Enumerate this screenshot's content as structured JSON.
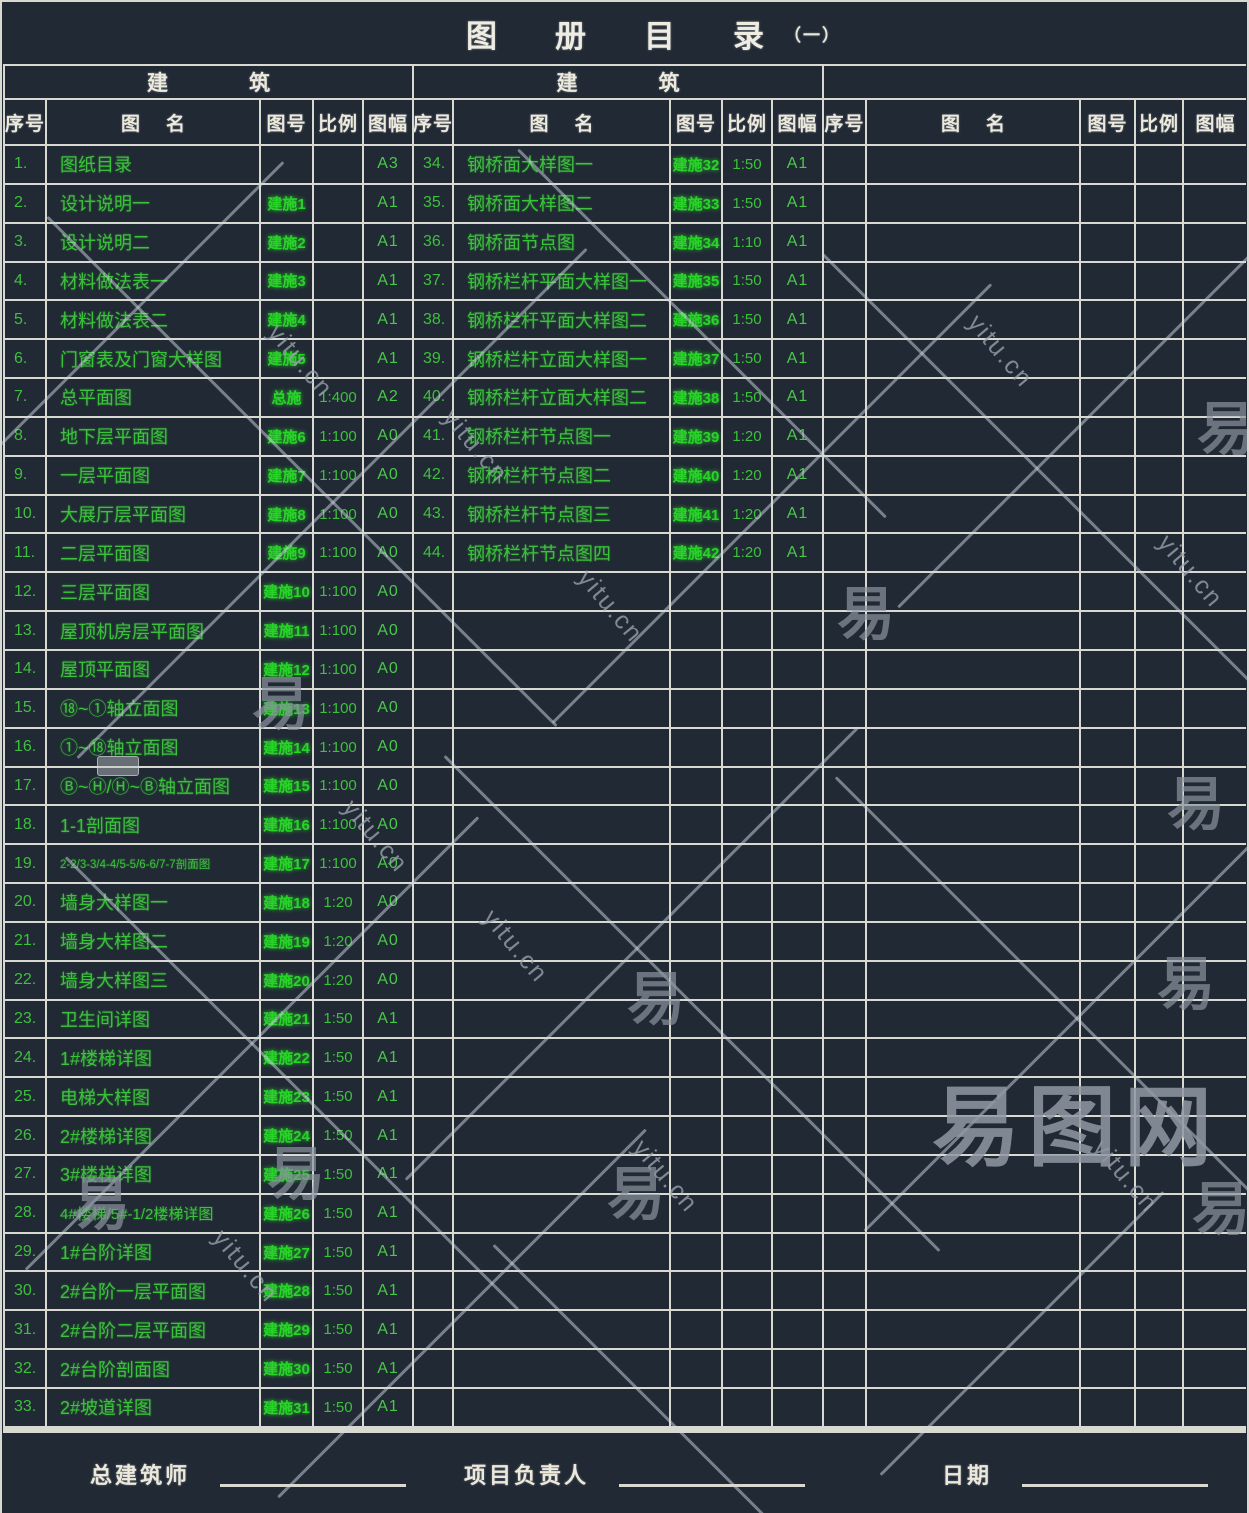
{
  "title": {
    "text": "图册目录",
    "suffix": "（一）"
  },
  "group_headers": [
    "建　筑",
    "建　筑",
    ""
  ],
  "column_headers": [
    "序号",
    "图名",
    "图号",
    "比例",
    "图幅"
  ],
  "rows_left": [
    {
      "no": "1.",
      "name": "图纸目录",
      "code": "",
      "scale": "",
      "size": "A3"
    },
    {
      "no": "2.",
      "name": "设计说明一",
      "code": "建施1",
      "scale": "",
      "size": "A1"
    },
    {
      "no": "3.",
      "name": "设计说明二",
      "code": "建施2",
      "scale": "",
      "size": "A1"
    },
    {
      "no": "4.",
      "name": "材料做法表一",
      "code": "建施3",
      "scale": "",
      "size": "A1"
    },
    {
      "no": "5.",
      "name": "材料做法表二",
      "code": "建施4",
      "scale": "",
      "size": "A1"
    },
    {
      "no": "6.",
      "name": "门窗表及门窗大样图",
      "code": "建施5",
      "scale": "",
      "size": "A1"
    },
    {
      "no": "7.",
      "name": "总平面图",
      "code": "总施",
      "scale": "1:400",
      "size": "A2"
    },
    {
      "no": "8.",
      "name": "地下层平面图",
      "code": "建施6",
      "scale": "1:100",
      "size": "A0"
    },
    {
      "no": "9.",
      "name": "一层平面图",
      "code": "建施7",
      "scale": "1:100",
      "size": "A0"
    },
    {
      "no": "10.",
      "name": "大展厅层平面图",
      "code": "建施8",
      "scale": "1:100",
      "size": "A0"
    },
    {
      "no": "11.",
      "name": "二层平面图",
      "code": "建施9",
      "scale": "1:100",
      "size": "A0"
    },
    {
      "no": "12.",
      "name": "三层平面图",
      "code": "建施10",
      "scale": "1:100",
      "size": "A0"
    },
    {
      "no": "13.",
      "name": "屋顶机房层平面图",
      "code": "建施11",
      "scale": "1:100",
      "size": "A0"
    },
    {
      "no": "14.",
      "name": "屋顶平面图",
      "code": "建施12",
      "scale": "1:100",
      "size": "A0"
    },
    {
      "no": "15.",
      "name": "⑱~①轴立面图",
      "code": "建施13",
      "scale": "1:100",
      "size": "A0"
    },
    {
      "no": "16.",
      "name": "①~⑱轴立面图",
      "code": "建施14",
      "scale": "1:100",
      "size": "A0"
    },
    {
      "no": "17.",
      "name": "Ⓑ~Ⓗ/Ⓗ~Ⓑ轴立面图",
      "code": "建施15",
      "scale": "1:100",
      "size": "A0"
    },
    {
      "no": "18.",
      "name": "1-1剖面图",
      "code": "建施16",
      "scale": "1:100",
      "size": "A0"
    },
    {
      "no": "19.",
      "name": "2-2/3-3/4-4/5-5/6-6/7-7剖面图",
      "code": "建施17",
      "scale": "1:100",
      "size": "A0"
    },
    {
      "no": "20.",
      "name": "墙身大样图一",
      "code": "建施18",
      "scale": "1:20",
      "size": "A0"
    },
    {
      "no": "21.",
      "name": "墙身大样图二",
      "code": "建施19",
      "scale": "1:20",
      "size": "A0"
    },
    {
      "no": "22.",
      "name": "墙身大样图三",
      "code": "建施20",
      "scale": "1:20",
      "size": "A0"
    },
    {
      "no": "23.",
      "name": "卫生间详图",
      "code": "建施21",
      "scale": "1:50",
      "size": "A1"
    },
    {
      "no": "24.",
      "name": "1#楼梯详图",
      "code": "建施22",
      "scale": "1:50",
      "size": "A1"
    },
    {
      "no": "25.",
      "name": "电梯大样图",
      "code": "建施23",
      "scale": "1:50",
      "size": "A1"
    },
    {
      "no": "26.",
      "name": "2#楼梯详图",
      "code": "建施24",
      "scale": "1:50",
      "size": "A1"
    },
    {
      "no": "27.",
      "name": "3#楼梯详图",
      "code": "建施25",
      "scale": "1:50",
      "size": "A1"
    },
    {
      "no": "28.",
      "name": "4#楼梯/5#-1/2楼梯详图",
      "code": "建施26",
      "scale": "1:50",
      "size": "A1"
    },
    {
      "no": "29.",
      "name": "1#台阶详图",
      "code": "建施27",
      "scale": "1:50",
      "size": "A1"
    },
    {
      "no": "30.",
      "name": "2#台阶一层平面图",
      "code": "建施28",
      "scale": "1:50",
      "size": "A1"
    },
    {
      "no": "31.",
      "name": "2#台阶二层平面图",
      "code": "建施29",
      "scale": "1:50",
      "size": "A1"
    },
    {
      "no": "32.",
      "name": "2#台阶剖面图",
      "code": "建施30",
      "scale": "1:50",
      "size": "A1"
    },
    {
      "no": "33.",
      "name": "2#坡道详图",
      "code": "建施31",
      "scale": "1:50",
      "size": "A1"
    }
  ],
  "rows_middle": [
    {
      "no": "34.",
      "name": "钢桥面大样图一",
      "code": "建施32",
      "scale": "1:50",
      "size": "A1"
    },
    {
      "no": "35.",
      "name": "钢桥面大样图二",
      "code": "建施33",
      "scale": "1:50",
      "size": "A1"
    },
    {
      "no": "36.",
      "name": "钢桥面节点图",
      "code": "建施34",
      "scale": "1:10",
      "size": "A1"
    },
    {
      "no": "37.",
      "name": "钢桥栏杆平面大样图一",
      "code": "建施35",
      "scale": "1:50",
      "size": "A1"
    },
    {
      "no": "38.",
      "name": "钢桥栏杆平面大样图二",
      "code": "建施36",
      "scale": "1:50",
      "size": "A1"
    },
    {
      "no": "39.",
      "name": "钢桥栏杆立面大样图一",
      "code": "建施37",
      "scale": "1:50",
      "size": "A1"
    },
    {
      "no": "40.",
      "name": "钢桥栏杆立面大样图二",
      "code": "建施38",
      "scale": "1:50",
      "size": "A1"
    },
    {
      "no": "41.",
      "name": "钢桥栏杆节点图一",
      "code": "建施39",
      "scale": "1:20",
      "size": "A1"
    },
    {
      "no": "42.",
      "name": "钢桥栏杆节点图二",
      "code": "建施40",
      "scale": "1:20",
      "size": "A1"
    },
    {
      "no": "43.",
      "name": "钢桥栏杆节点图三",
      "code": "建施41",
      "scale": "1:20",
      "size": "A1"
    },
    {
      "no": "44.",
      "name": "钢桥栏杆节点图四",
      "code": "建施42",
      "scale": "1:20",
      "size": "A1"
    }
  ],
  "rows_right": [],
  "footer": {
    "labels": [
      "总建筑师",
      "项目负责人",
      "日期"
    ]
  },
  "watermark": {
    "site": "yitu.cn",
    "glyph": "易",
    "logo": "易图网"
  },
  "colors": {
    "background": "#212934",
    "grid_line": "#D8DAD2",
    "text_green": "#3CC13C",
    "code_green": "#28D428",
    "header_white": "#ECE9DD",
    "watermark_gray": "#9AA3AE"
  }
}
